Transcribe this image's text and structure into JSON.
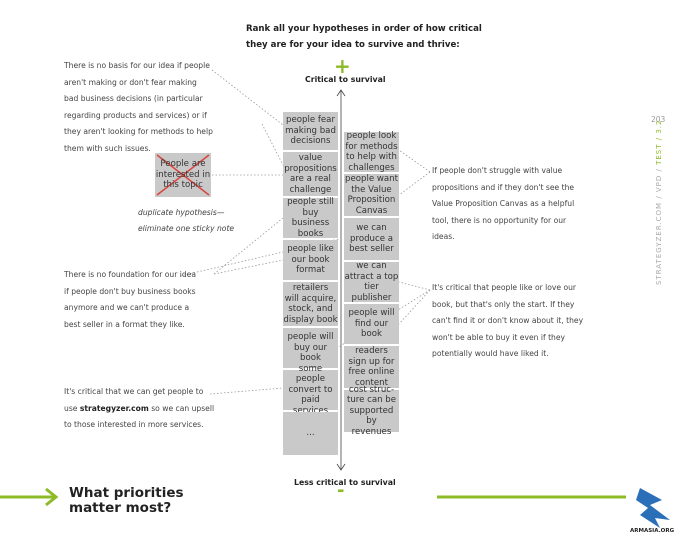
{
  "header": {
    "lines": [
      "Rank all your hypotheses in order of how critical",
      "they are for your idea to survive and thrive:"
    ]
  },
  "axis": {
    "top_sign": "+",
    "top_label": "Critical to survival",
    "bottom_label": "Less critical to survival",
    "bottom_sign": "-"
  },
  "left_notes": [
    {
      "lines": [
        "people fear",
        "making bad",
        "decisions"
      ]
    },
    {
      "lines": [
        "value",
        "propositions",
        "are a real",
        "challenge"
      ]
    },
    {
      "lines": [
        "people still",
        "buy business",
        "books"
      ]
    },
    {
      "lines": [
        "people like",
        "our book",
        "format"
      ]
    },
    {
      "lines": [
        "retailers",
        "will acquire,",
        "stock, and",
        "display book"
      ]
    },
    {
      "lines": [
        "people will",
        "buy our book"
      ]
    },
    {
      "lines": [
        "some people",
        "convert to",
        "paid services"
      ]
    },
    {
      "lines": [
        "..."
      ]
    }
  ],
  "right_notes": [
    {
      "lines": [
        "people look",
        "for methods",
        "to help with",
        "challenges"
      ]
    },
    {
      "lines": [
        "people want",
        "the Value",
        "Proposition",
        "Canvas"
      ]
    },
    {
      "lines": [
        "we can",
        "produce a",
        "best seller"
      ]
    },
    {
      "lines": [
        "we can",
        "attract a top",
        "tier publisher"
      ]
    },
    {
      "lines": [
        "people will",
        "find our book"
      ]
    },
    {
      "lines": [
        "readers",
        "sign up for",
        "free online",
        "content"
      ]
    },
    {
      "lines": [
        "cost struc-",
        "ture can be",
        "supported by",
        "revenues"
      ]
    }
  ],
  "duplicate": {
    "lines": [
      "People are",
      "interested in",
      "this topic"
    ],
    "caption": [
      "duplicate hypothesis—",
      "eliminate one sticky note"
    ]
  },
  "annotations": [
    {
      "lines": [
        "There is no basis for our idea if people",
        "aren't making or don't fear making",
        "bad business decisions (in particular",
        "regarding products and services) or if",
        "they aren't looking for methods to help",
        "them with such issues."
      ]
    },
    {
      "lines": [
        "There is no foundation for our idea",
        "if people don't buy business books",
        "anymore and we can't produce a",
        "best seller in a format they like."
      ]
    },
    {
      "lines": [
        "It's critical that we can get people to",
        "use ",
        "strategyzer.com",
        " so we can upsell",
        "to those interested in more services."
      ]
    },
    {
      "lines": [
        "If people don't struggle with value",
        "propositions and if they don't see the",
        "Value Proposition Canvas as a helpful",
        "tool, there is no opportunity for our",
        "ideas."
      ]
    },
    {
      "lines": [
        "It's critical that people like or love our",
        "book, but that's only the start. If they",
        "can't find it or don't know about it, they",
        "won't be able to buy it even if they",
        "potentially would have liked it."
      ]
    }
  ],
  "page_number": "203",
  "side": {
    "gray": "STRATEGYZER.COM / VPD / ",
    "green": "TEST / 3.2"
  },
  "footer": {
    "title_lines": [
      "What priorities",
      "matter most?"
    ],
    "logo": "ARMASIA.ORG"
  }
}
